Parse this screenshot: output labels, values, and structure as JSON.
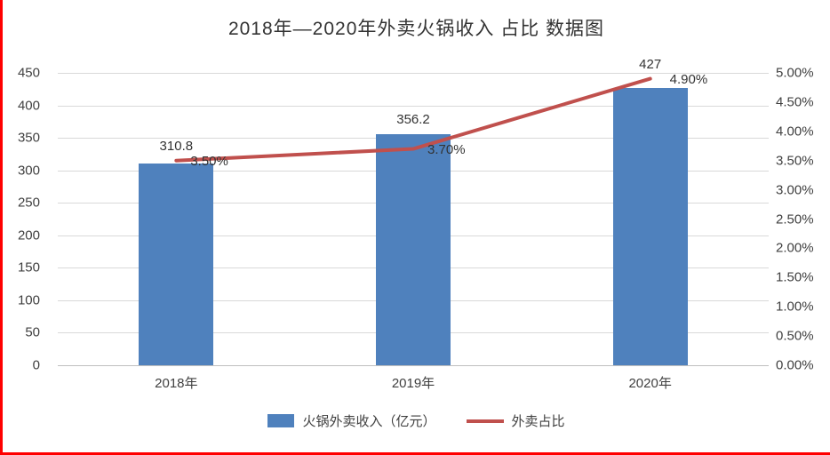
{
  "chart_data": {
    "type": "bar+line",
    "title": "2018年—2020年外卖火锅收入 占比 数据图",
    "categories": [
      "2018年",
      "2019年",
      "2020年"
    ],
    "series": [
      {
        "name": "火锅外卖收入（亿元）",
        "type": "bar",
        "axis": "left",
        "values": [
          310.8,
          356.2,
          427
        ],
        "labels": [
          "310.8",
          "356.2",
          "427"
        ],
        "color": "#4F81BD"
      },
      {
        "name": "外卖占比",
        "type": "line",
        "axis": "right",
        "values": [
          3.5,
          3.7,
          4.9
        ],
        "labels": [
          "3.50%",
          "3.70%",
          "4.90%"
        ],
        "color": "#C0504D"
      }
    ],
    "left_axis": {
      "min": 0,
      "max": 450,
      "step": 50,
      "ticks": [
        "0",
        "50",
        "100",
        "150",
        "200",
        "250",
        "300",
        "350",
        "400",
        "450"
      ]
    },
    "right_axis": {
      "min": 0,
      "max": 5,
      "step": 0.5,
      "ticks": [
        "0.00%",
        "0.50%",
        "1.00%",
        "1.50%",
        "2.00%",
        "2.50%",
        "3.00%",
        "3.50%",
        "4.00%",
        "4.50%",
        "5.00%"
      ]
    },
    "grid": true,
    "legend_position": "bottom"
  },
  "colors": {
    "bar": "#4F81BD",
    "line": "#C0504D",
    "frame": "#FF0000",
    "grid": "#D9D9D9",
    "axis_line": "#BFBFBF",
    "axis_text": "#404040"
  }
}
